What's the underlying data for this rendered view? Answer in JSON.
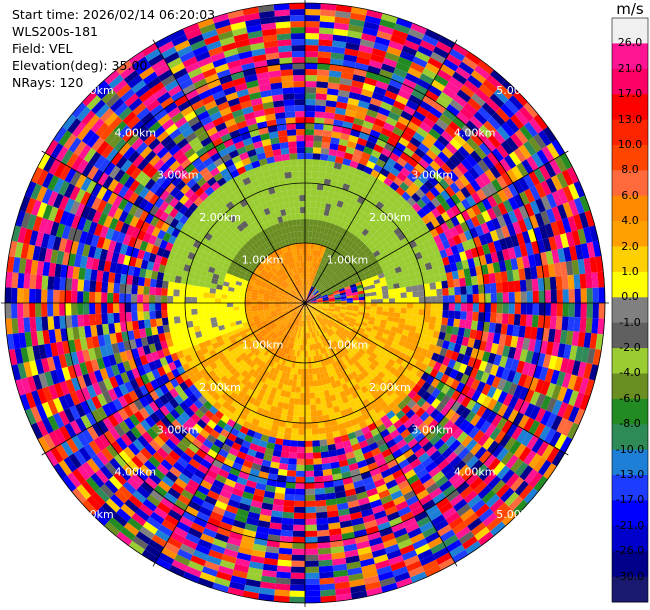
{
  "header": {
    "start_time": "Start time: 2026/02/14 06:20:03",
    "instrument": "WLS200s-181",
    "field": "Field: VEL",
    "elevation": "Elevation(deg): 35.00",
    "nrays": "NRays: 120"
  },
  "chart_data": {
    "type": "ppi-radar",
    "field": "VEL",
    "units": "m/s",
    "nrays": 120,
    "elevation_deg": 35.0,
    "range_rings_km": [
      1.0,
      2.0,
      3.0,
      4.0,
      5.0
    ],
    "range_ring_labels": [
      "1.00km",
      "2.00km",
      "3.00km",
      "4.00km",
      "5.00km"
    ],
    "max_range_km": 5.0,
    "spokes_deg": [
      0,
      30,
      60,
      90,
      120,
      150,
      180,
      210,
      240,
      270,
      300,
      330
    ],
    "colorbar": {
      "ticks": [
        "26.0",
        "21.0",
        "17.0",
        "13.0",
        "10.0",
        "8.0",
        "6.0",
        "4.0",
        "2.0",
        "1.0",
        "0.0",
        "-1.0",
        "-2.0",
        "-4.0",
        "-6.0",
        "-8.0",
        "-10.0",
        "-13.0",
        "-17.0",
        "-21.0",
        "-26.0",
        "-30.0"
      ],
      "colors": [
        "#f0f0f0",
        "#ff1493",
        "#ff0066",
        "#ff0000",
        "#ff2400",
        "#ff4500",
        "#ff6a3c",
        "#ff8a00",
        "#ffa000",
        "#ffd000",
        "#ffff00",
        "#808080",
        "#606060",
        "#9acd32",
        "#6b8e23",
        "#228b22",
        "#2e8b57",
        "#1e7fd6",
        "#1e3cff",
        "#0000ff",
        "#0000cd",
        "#00008b",
        "#191970"
      ]
    },
    "observed_regions": [
      {
        "description": "approaching",
        "azimuth_deg": [
          195,
          20
        ],
        "range_km": [
          0.0,
          1.0
        ],
        "value": 4.0
      },
      {
        "description": "approaching",
        "azimuth_deg": [
          90,
          250
        ],
        "range_km": [
          0.0,
          2.3
        ],
        "value": 2.0
      },
      {
        "description": "receding",
        "azimuth_deg": [
          290,
          70
        ],
        "range_km": [
          0.3,
          1.4
        ],
        "value": -5.0
      },
      {
        "description": "receding",
        "azimuth_deg": [
          280,
          80
        ],
        "range_km": [
          1.4,
          2.4
        ],
        "value": -2.5
      },
      {
        "description": "near zero",
        "azimuth_deg": [
          70,
          130
        ],
        "range_km": [
          1.0,
          2.3
        ],
        "value": 0.0
      },
      {
        "description": "near zero",
        "azimuth_deg": [
          250,
          290
        ],
        "range_km": [
          0.0,
          2.3
        ],
        "value": 0.5
      },
      {
        "description": "noise",
        "azimuth_deg": [
          0,
          360
        ],
        "range_km": [
          2.3,
          5.0
        ],
        "value": null
      }
    ]
  }
}
